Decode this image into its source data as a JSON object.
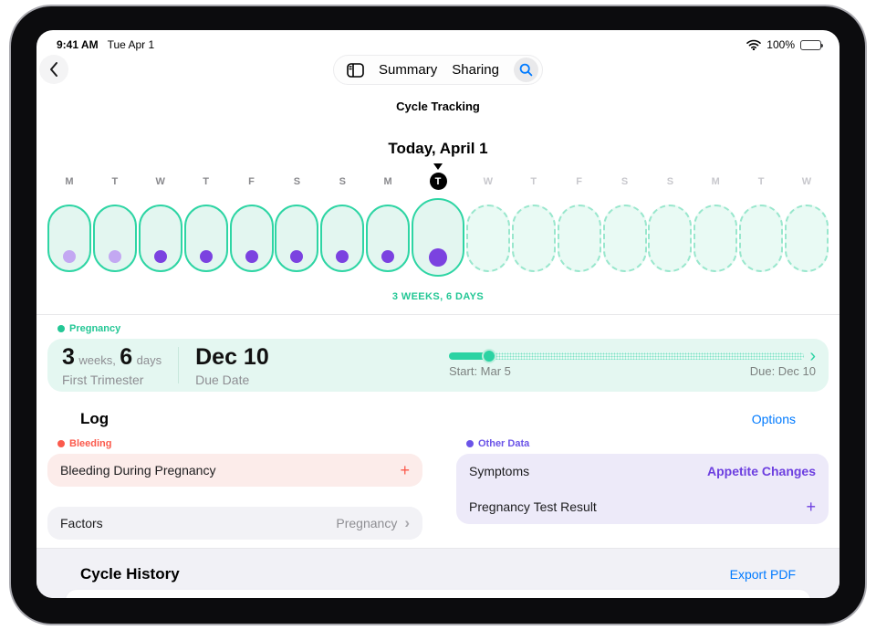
{
  "status_bar": {
    "time": "9:41 AM",
    "date": "Tue Apr 1",
    "battery": "100%"
  },
  "nav": {
    "summary_label": "Summary",
    "sharing_label": "Sharing"
  },
  "header": {
    "app_title": "Cycle Tracking",
    "date_title": "Today, April 1"
  },
  "timeline": {
    "caption": "3 WEEKS, 6 DAYS",
    "days": [
      {
        "letter": "M",
        "state": "past",
        "dot": "light"
      },
      {
        "letter": "T",
        "state": "past",
        "dot": "light"
      },
      {
        "letter": "W",
        "state": "past",
        "dot": "dark"
      },
      {
        "letter": "T",
        "state": "past",
        "dot": "dark"
      },
      {
        "letter": "F",
        "state": "past",
        "dot": "dark"
      },
      {
        "letter": "S",
        "state": "past",
        "dot": "dark"
      },
      {
        "letter": "S",
        "state": "past",
        "dot": "dark"
      },
      {
        "letter": "M",
        "state": "past",
        "dot": "dark"
      },
      {
        "letter": "T",
        "state": "today",
        "dot": "dark"
      },
      {
        "letter": "W",
        "state": "future",
        "dot": "none"
      },
      {
        "letter": "T",
        "state": "future",
        "dot": "none"
      },
      {
        "letter": "F",
        "state": "future",
        "dot": "none"
      },
      {
        "letter": "S",
        "state": "future",
        "dot": "none"
      },
      {
        "letter": "S",
        "state": "future",
        "dot": "none"
      },
      {
        "letter": "M",
        "state": "future",
        "dot": "none"
      },
      {
        "letter": "T",
        "state": "future",
        "dot": "none"
      },
      {
        "letter": "W",
        "state": "future",
        "dot": "none"
      }
    ]
  },
  "pregnancy": {
    "section_label": "Pregnancy",
    "weeks_value": "3",
    "weeks_unit": "weeks,",
    "days_value": "6",
    "days_unit": "days",
    "stage": "First Trimester",
    "due_value": "Dec 10",
    "due_caption": "Due Date",
    "progress": {
      "percent": 11,
      "start_label": "Start: Mar 5",
      "due_label": "Due: Dec 10"
    }
  },
  "log": {
    "title": "Log",
    "options_label": "Options",
    "bleeding": {
      "label": "Bleeding",
      "item": "Bleeding During Pregnancy",
      "add": "+"
    },
    "other_data": {
      "label": "Other Data",
      "rows": [
        {
          "label": "Symptoms",
          "value": "Appetite Changes"
        },
        {
          "label": "Pregnancy Test Result",
          "value": "+"
        }
      ]
    },
    "factors": {
      "label": "Factors",
      "value": "Pregnancy"
    }
  },
  "history": {
    "title": "Cycle History",
    "export_label": "Export PDF"
  },
  "colors": {
    "teal": "#2ed5a4",
    "teal_text": "#23c795",
    "teal_fill": "#e4f7f1",
    "purple": "#7b42e0",
    "purple_light": "#c3a8f2",
    "purple_fill": "#edeaf9",
    "red": "#fb5a4c",
    "red_fill": "#fcecea",
    "link_blue": "#007aff",
    "gray_text": "#8e8e93"
  }
}
